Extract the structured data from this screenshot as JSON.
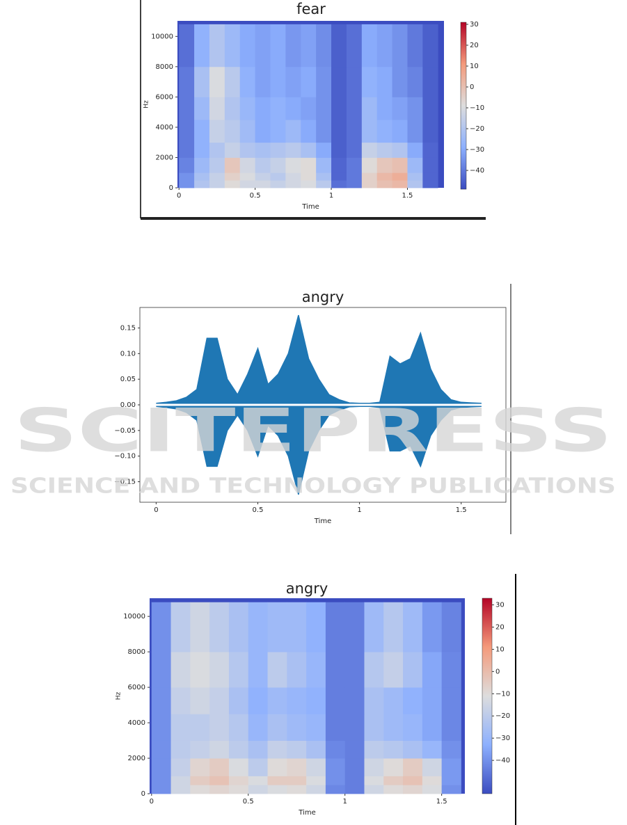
{
  "chart_data": [
    {
      "type": "spectrogram",
      "title": "fear",
      "xlabel": "Time",
      "ylabel": "Hz",
      "xlim": [
        -0.01,
        1.74
      ],
      "ylim": [
        0,
        11025
      ],
      "xticks": [
        0,
        0.5,
        1,
        1.5
      ],
      "yticks": [
        0,
        2000,
        4000,
        6000,
        8000,
        10000
      ],
      "clim": [
        -49,
        31
      ],
      "cticks": [
        30,
        20,
        10,
        0,
        {
          "value": -10,
          "label": "−10"
        },
        {
          "value": -20,
          "label": "−20"
        },
        {
          "value": -30,
          "label": "−30"
        },
        {
          "value": -40,
          "label": "−40"
        }
      ],
      "time_bins": [
        0,
        0.1,
        0.2,
        0.3,
        0.4,
        0.5,
        0.6,
        0.7,
        0.8,
        0.9,
        1.0,
        1.1,
        1.2,
        1.3,
        1.4,
        1.5,
        1.6,
        1.7
      ],
      "freq_bins": [
        0,
        500,
        1000,
        2000,
        3000,
        4500,
        6000,
        8000,
        10800
      ],
      "values": [
        [
          -35,
          -20,
          -15,
          -8,
          -12,
          -12,
          -15,
          -12,
          -10,
          -18,
          -42,
          -40,
          -5,
          0,
          2,
          -20,
          -44
        ],
        [
          -35,
          -22,
          -15,
          -5,
          -10,
          -15,
          -18,
          -12,
          -8,
          -22,
          -44,
          -40,
          -5,
          2,
          5,
          -22,
          -44
        ],
        [
          -38,
          -25,
          -18,
          -2,
          -12,
          -18,
          -15,
          -10,
          -8,
          -25,
          -44,
          -40,
          -8,
          -2,
          0,
          -25,
          -44
        ],
        [
          -40,
          -28,
          -20,
          -15,
          -20,
          -22,
          -20,
          -18,
          -22,
          -30,
          -45,
          -42,
          -15,
          -18,
          -20,
          -30,
          -44
        ],
        [
          -40,
          -28,
          -15,
          -18,
          -24,
          -30,
          -28,
          -25,
          -30,
          -35,
          -45,
          -42,
          -25,
          -28,
          -30,
          -35,
          -45
        ],
        [
          -40,
          -25,
          -12,
          -20,
          -26,
          -30,
          -28,
          -30,
          -32,
          -35,
          -45,
          -42,
          -25,
          -30,
          -32,
          -35,
          -45
        ],
        [
          -40,
          -22,
          -10,
          -18,
          -28,
          -32,
          -30,
          -32,
          -30,
          -35,
          -45,
          -42,
          -28,
          -30,
          -35,
          -38,
          -45
        ],
        [
          -42,
          -28,
          -20,
          -25,
          -30,
          -32,
          -30,
          -34,
          -32,
          -36,
          -45,
          -42,
          -30,
          -32,
          -35,
          -40,
          -45
        ]
      ]
    },
    {
      "type": "waveform",
      "title": "angry",
      "xlabel": "Time",
      "color": "#1f77b4",
      "xlim": [
        -0.08,
        1.72
      ],
      "ylim": [
        -0.19,
        0.19
      ],
      "xticks": [
        0,
        0.5,
        1,
        1.5
      ],
      "yticks": [
        0.15,
        {
          "value": 0.1,
          "label": "0.10"
        },
        0.05,
        {
          "value": 0,
          "label": "0.00"
        },
        {
          "value": -0.05,
          "label": "−0.05"
        },
        {
          "value": -0.1,
          "label": "−0.10"
        },
        {
          "value": -0.15,
          "label": "−0.15"
        }
      ],
      "x": [
        0,
        0.05,
        0.1,
        0.15,
        0.2,
        0.25,
        0.3,
        0.35,
        0.4,
        0.45,
        0.5,
        0.55,
        0.6,
        0.65,
        0.7,
        0.75,
        0.8,
        0.85,
        0.9,
        0.95,
        1.0,
        1.05,
        1.1,
        1.15,
        1.2,
        1.25,
        1.3,
        1.35,
        1.4,
        1.45,
        1.5,
        1.55,
        1.6
      ],
      "upper": [
        0.003,
        0.005,
        0.008,
        0.015,
        0.03,
        0.13,
        0.13,
        0.05,
        0.02,
        0.06,
        0.11,
        0.04,
        0.06,
        0.1,
        0.175,
        0.09,
        0.05,
        0.02,
        0.01,
        0.004,
        0.003,
        0.003,
        0.005,
        0.095,
        0.08,
        0.09,
        0.14,
        0.07,
        0.03,
        0.01,
        0.005,
        0.004,
        0.003
      ],
      "lower": [
        -0.003,
        -0.005,
        -0.008,
        -0.015,
        -0.03,
        -0.12,
        -0.12,
        -0.05,
        -0.02,
        -0.05,
        -0.1,
        -0.04,
        -0.06,
        -0.1,
        -0.175,
        -0.09,
        -0.05,
        -0.02,
        -0.01,
        -0.004,
        -0.003,
        -0.003,
        -0.005,
        -0.09,
        -0.09,
        -0.08,
        -0.12,
        -0.06,
        -0.03,
        -0.01,
        -0.005,
        -0.004,
        -0.003
      ]
    },
    {
      "type": "spectrogram",
      "title": "angry",
      "xlabel": "Time",
      "ylabel": "Hz",
      "xlim": [
        -0.01,
        1.62
      ],
      "ylim": [
        0,
        11025
      ],
      "xticks": [
        0,
        0.5,
        1,
        1.5
      ],
      "yticks": [
        0,
        2000,
        4000,
        6000,
        8000,
        10000
      ],
      "clim": [
        -55,
        33
      ],
      "cticks": [
        30,
        20,
        10,
        0,
        {
          "value": -10,
          "label": "−10"
        },
        {
          "value": -20,
          "label": "−20"
        },
        {
          "value": -30,
          "label": "−30"
        },
        {
          "value": -40,
          "label": "−40"
        }
      ],
      "time_bins": [
        0,
        0.1,
        0.2,
        0.3,
        0.4,
        0.5,
        0.6,
        0.7,
        0.8,
        0.9,
        1.0,
        1.1,
        1.2,
        1.3,
        1.4,
        1.5,
        1.6
      ],
      "freq_bins": [
        0,
        500,
        1000,
        2000,
        3000,
        4500,
        6000,
        8000,
        10800
      ],
      "values": [
        [
          -40,
          -15,
          -10,
          -8,
          -10,
          -15,
          -12,
          -10,
          -15,
          -42,
          -44,
          -15,
          -10,
          -8,
          -12,
          -40
        ],
        [
          -40,
          -15,
          -5,
          -2,
          -8,
          -12,
          -5,
          -5,
          -12,
          -40,
          -44,
          -12,
          -5,
          -2,
          -10,
          -38
        ],
        [
          -40,
          -18,
          -8,
          -5,
          -12,
          -20,
          -10,
          -8,
          -15,
          -40,
          -44,
          -15,
          -10,
          -5,
          -15,
          -38
        ],
        [
          -40,
          -20,
          -18,
          -15,
          -20,
          -25,
          -18,
          -20,
          -25,
          -42,
          -44,
          -20,
          -22,
          -25,
          -30,
          -40
        ],
        [
          -40,
          -20,
          -20,
          -18,
          -22,
          -30,
          -25,
          -28,
          -30,
          -44,
          -44,
          -25,
          -28,
          -30,
          -35,
          -42
        ],
        [
          -40,
          -18,
          -15,
          -18,
          -25,
          -32,
          -28,
          -30,
          -32,
          -44,
          -44,
          -25,
          -28,
          -32,
          -35,
          -42
        ],
        [
          -40,
          -15,
          -12,
          -15,
          -22,
          -30,
          -20,
          -25,
          -30,
          -44,
          -44,
          -22,
          -18,
          -25,
          -35,
          -42
        ],
        [
          -40,
          -20,
          -15,
          -20,
          -25,
          -30,
          -28,
          -28,
          -32,
          -44,
          -44,
          -28,
          -22,
          -28,
          -38,
          -43
        ]
      ]
    }
  ],
  "watermark": {
    "name": "SCITEPRESS",
    "tagline": "SCIENCE AND TECHNOLOGY PUBLICATIONS"
  }
}
